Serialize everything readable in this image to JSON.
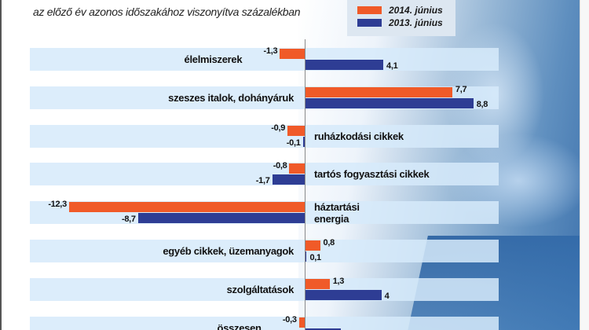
{
  "header": {
    "subtitle": "az előző év azonos időszakához viszonyítva százalékban"
  },
  "legend": [
    {
      "label": "2014. június",
      "color": "#F05A28"
    },
    {
      "label": "2013. június",
      "color": "#2E3D94"
    }
  ],
  "rows": [
    {
      "category": "élelmiszerek",
      "line2": "",
      "v2014": "-1,3",
      "v2013": "4,1",
      "label_side": "left"
    },
    {
      "category": "szeszes italok, dohányáruk",
      "line2": "",
      "v2014": "7,7",
      "v2013": "8,8",
      "label_side": "left"
    },
    {
      "category": "ruházkodási cikkek",
      "line2": "",
      "v2014": "-0,9",
      "v2013": "-0,1",
      "label_side": "right"
    },
    {
      "category": "tartós fogyasztási cikkek",
      "line2": "",
      "v2014": "-0,8",
      "v2013": "-1,7",
      "label_side": "right"
    },
    {
      "category": "háztartási",
      "line2": "energia",
      "v2014": "-12,3",
      "v2013": "-8,7",
      "label_side": "right"
    },
    {
      "category": "egyéb cikkek, üzemanyagok",
      "line2": "",
      "v2014": "0,8",
      "v2013": "0,1",
      "label_side": "left"
    },
    {
      "category": "szolgáltatások",
      "line2": "",
      "v2014": "1,3",
      "v2013": "4",
      "label_side": "left"
    },
    {
      "category": "összesen",
      "line2": "",
      "v2014": "-0,3",
      "v2013": "1,9",
      "label_side": "left"
    }
  ],
  "colors": {
    "orange": "#F05A28",
    "blue": "#2E3D94",
    "band": "#D6EAFA"
  },
  "chart_data": {
    "type": "bar",
    "orientation": "horizontal",
    "title": "",
    "subtitle": "az előző év azonos időszakához viszonyítva százalékban",
    "xlabel": "",
    "ylabel": "",
    "categories": [
      "élelmiszerek",
      "szeszes italok, dohányáruk",
      "ruházkodási cikkek",
      "tartós fogyasztási cikkek",
      "háztartási energia",
      "egyéb cikkek, üzemanyagok",
      "szolgáltatások",
      "összesen"
    ],
    "series": [
      {
        "name": "2014. június",
        "color": "#F05A28",
        "values": [
          -1.3,
          7.7,
          -0.9,
          -0.8,
          -12.3,
          0.8,
          1.3,
          -0.3
        ]
      },
      {
        "name": "2013. június",
        "color": "#2E3D94",
        "values": [
          4.1,
          8.8,
          -0.1,
          -1.7,
          -8.7,
          0.1,
          4.0,
          1.9
        ]
      }
    ],
    "xlim": [
      -12.3,
      10
    ],
    "grid": false,
    "legend_position": "top-right",
    "data_labels": true,
    "decimal_separator": ","
  }
}
